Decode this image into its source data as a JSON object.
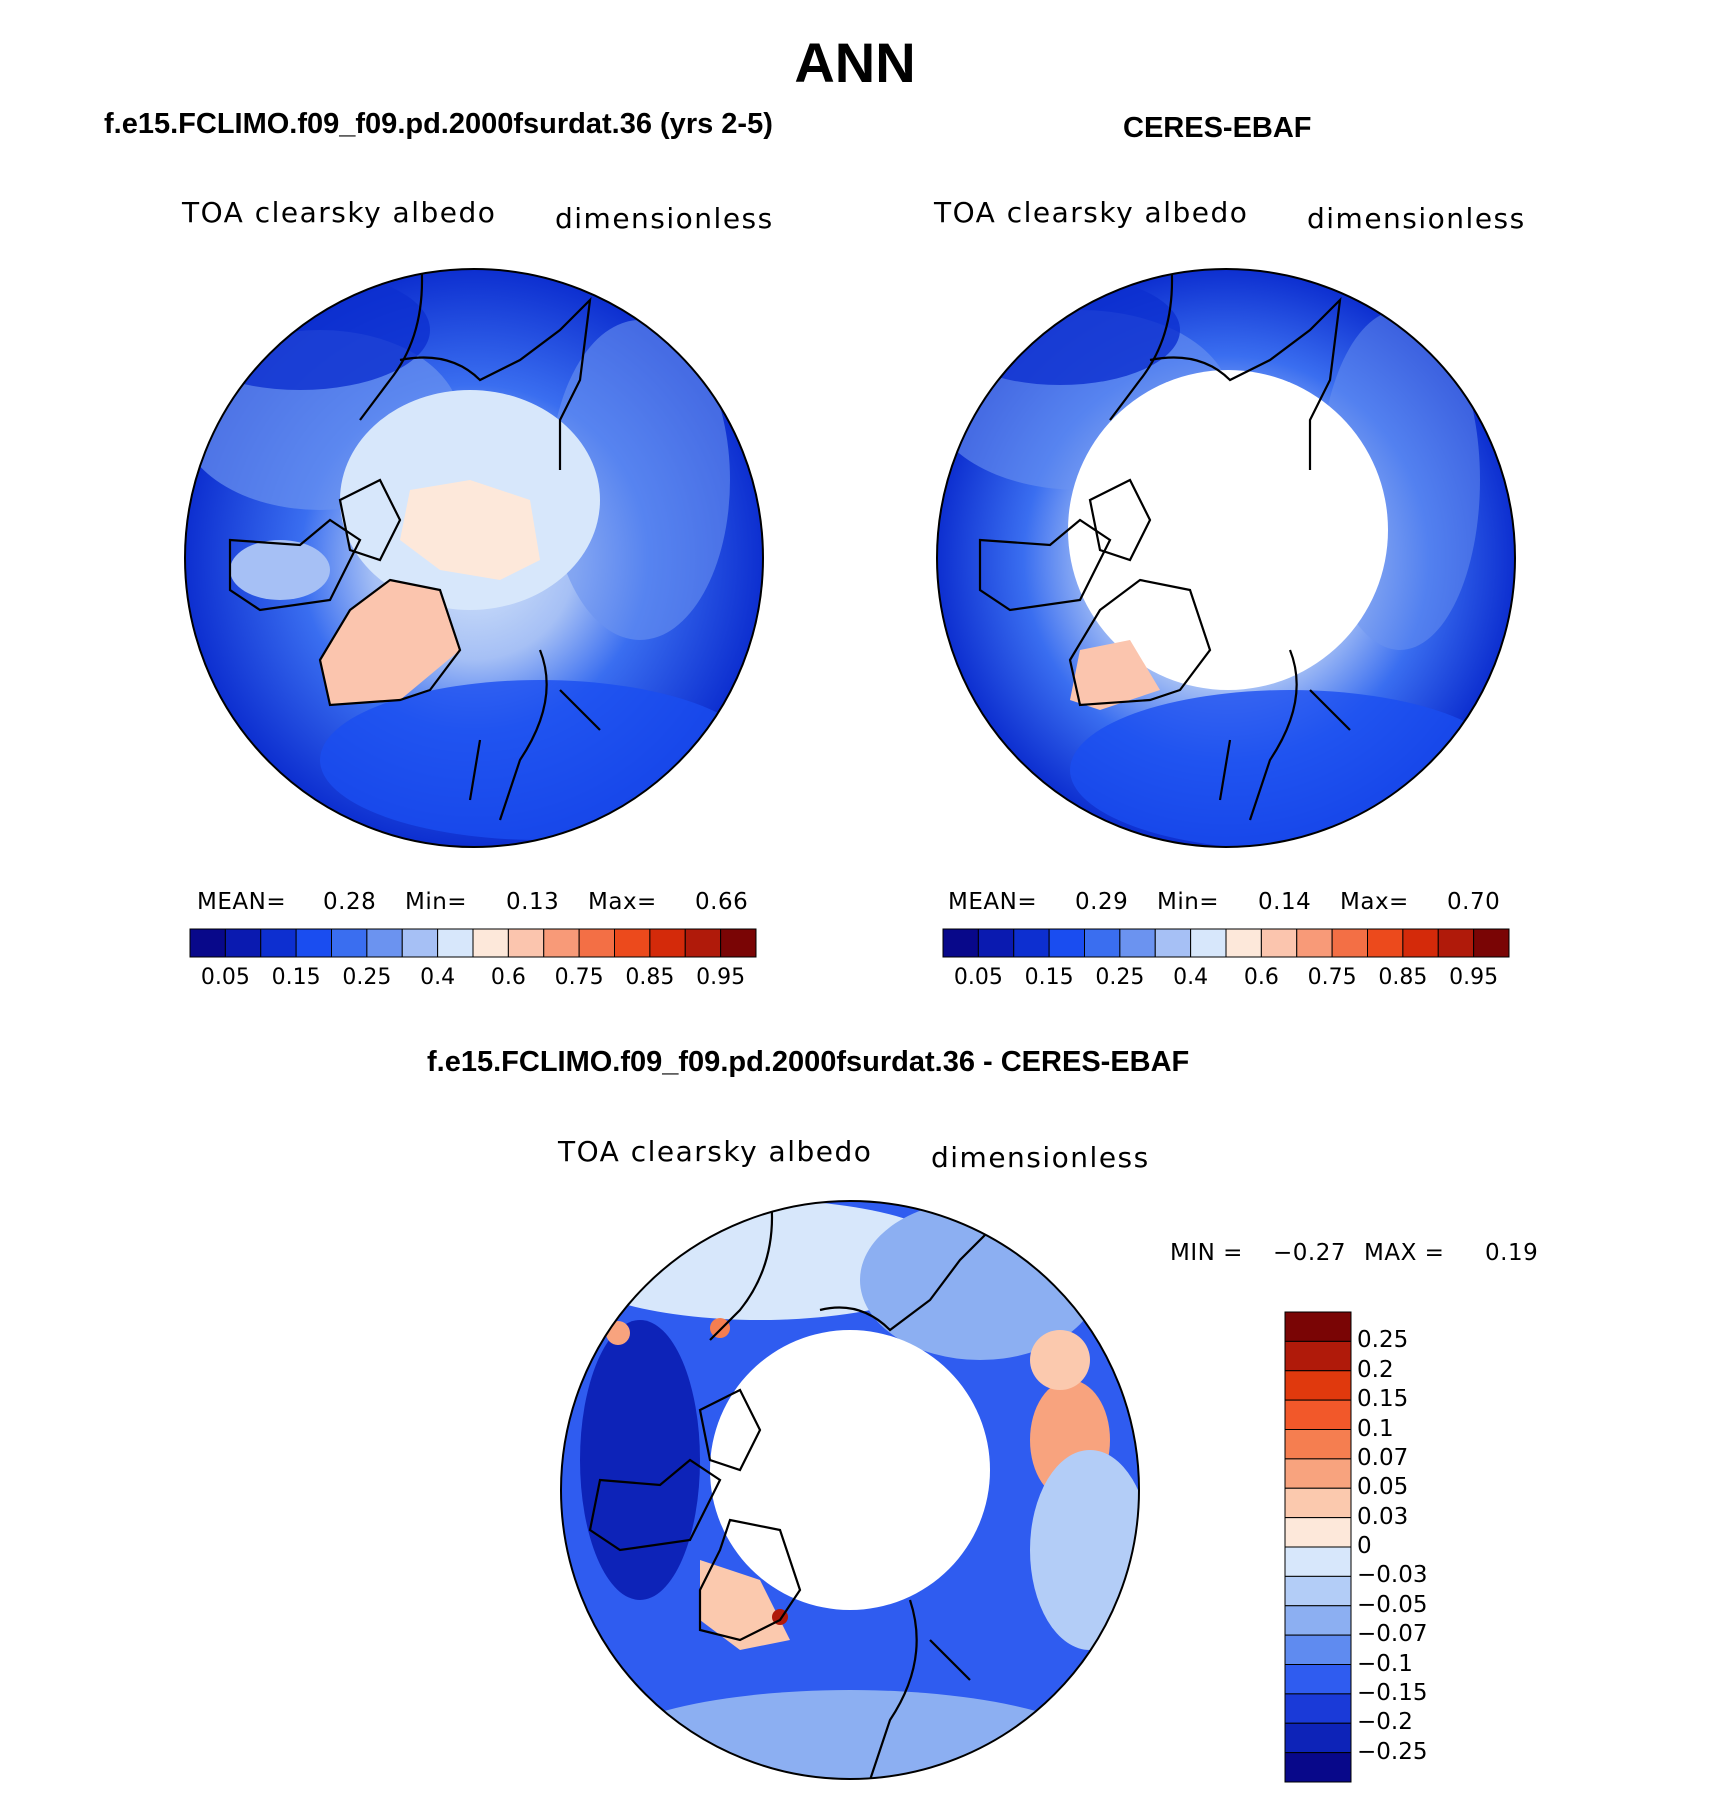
{
  "title": "ANN",
  "panels": [
    {
      "id": "model",
      "title": "f.e15.FCLIMO.f09_f09.pd.2000fsurdat.36 (yrs 2-5)",
      "variable": "TOA clearsky albedo",
      "units": "dimensionless",
      "stats": {
        "mean_label": "MEAN=",
        "mean": "0.28",
        "min_label": "Min=",
        "min": "0.13",
        "max_label": "Max=",
        "max": "0.66"
      }
    },
    {
      "id": "obs",
      "title": "CERES-EBAF",
      "variable": "TOA clearsky albedo",
      "units": "dimensionless",
      "stats": {
        "mean_label": "MEAN=",
        "mean": "0.29",
        "min_label": "Min=",
        "min": "0.14",
        "max_label": "Max=",
        "max": "0.70"
      }
    }
  ],
  "abs_colorbar": {
    "ticks": [
      "0.05",
      "0.15",
      "0.25",
      "0.4",
      "0.6",
      "0.75",
      "0.85",
      "0.95"
    ],
    "colors": [
      "#08088a",
      "#0a1ab0",
      "#0d2fd0",
      "#1a4df0",
      "#3a6ef0",
      "#6b93f0",
      "#a6c0f5",
      "#d7e7fb",
      "#fde8da",
      "#fbc5ae",
      "#f89a78",
      "#f36f45",
      "#ec4a1c",
      "#d42a0a",
      "#b01a0a",
      "#7a0505"
    ]
  },
  "diff": {
    "title": "f.e15.FCLIMO.f09_f09.pd.2000fsurdat.36 - CERES-EBAF",
    "variable": "TOA clearsky albedo",
    "units": "dimensionless",
    "minmax": {
      "min_label": "MIN =",
      "min": "−0.27",
      "max_label": "MAX =",
      "max": "0.19"
    },
    "colorbar": {
      "ticks": [
        "0.25",
        "0.2",
        "0.15",
        "0.1",
        "0.07",
        "0.05",
        "0.03",
        "0",
        "−0.03",
        "−0.05",
        "−0.07",
        "−0.1",
        "−0.15",
        "−0.2",
        "−0.25"
      ],
      "colors": [
        "#7a0505",
        "#b01a0a",
        "#e0390d",
        "#f2582a",
        "#f57e50",
        "#f8a37e",
        "#fbc9ae",
        "#fde8da",
        "#d7e7fb",
        "#b3cdf7",
        "#8caff2",
        "#5f8bf0",
        "#2f5cf0",
        "#1a3ad8",
        "#0d23b8",
        "#08088a"
      ]
    }
  }
}
